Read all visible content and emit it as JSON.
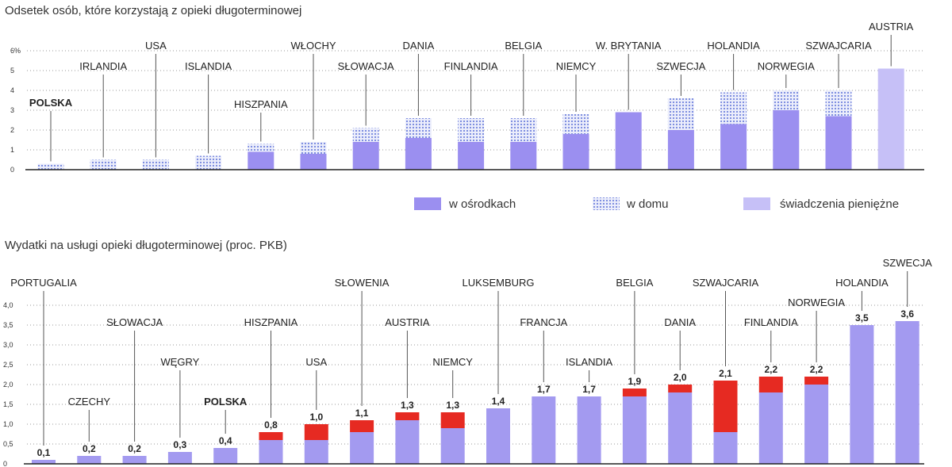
{
  "colors": {
    "institutional": "#9b8ff0",
    "home": "#7f8fe0",
    "home_bg": "#ebedfb",
    "cash": "#c6c0f7",
    "red": "#e62a22",
    "spending": "#a39af0"
  },
  "chart_data": [
    {
      "type": "bar",
      "title": "Odsetek osób, które korzystają z opieki długoterminowej",
      "ylabel": "%",
      "ylim": [
        0,
        6
      ],
      "yticks": [
        "0",
        "1",
        "2",
        "3",
        "4",
        "5",
        "6%"
      ],
      "categories": [
        "POLSKA",
        "IRLANDIA",
        "USA",
        "ISLANDIA",
        "HISZPANIA",
        "WŁOCHY",
        "SŁOWACJA",
        "DANIA",
        "FINLANDIA",
        "BELGIA",
        "NIEMCY",
        "W. BRYTANIA",
        "SZWECJA",
        "HOLANDIA",
        "NORWEGIA",
        "SZWAJCARIA",
        "AUSTRIA"
      ],
      "highlight": [
        "POLSKA"
      ],
      "series": [
        {
          "name": "w ośrodkach",
          "values": [
            0,
            0,
            0,
            0,
            0.9,
            0.8,
            1.4,
            1.6,
            1.4,
            1.4,
            1.8,
            2.9,
            2.0,
            2.3,
            3.0,
            2.7,
            0
          ]
        },
        {
          "name": "w domu",
          "values": [
            0.3,
            0.5,
            0.5,
            0.7,
            0.4,
            0.6,
            0.7,
            1.0,
            1.2,
            1.2,
            1.0,
            0,
            1.6,
            1.6,
            1.0,
            1.3,
            0
          ]
        },
        {
          "name": "świadczenia pieniężne",
          "values": [
            0,
            0,
            0,
            0,
            0,
            0,
            0,
            0,
            0,
            0,
            0,
            0,
            0,
            0,
            0,
            0,
            5.1
          ]
        }
      ],
      "legend": [
        {
          "key": "institutional",
          "label": "w ośrodkach"
        },
        {
          "key": "home",
          "label": "w domu"
        },
        {
          "key": "cash",
          "label": "świadczenia pieniężne"
        }
      ]
    },
    {
      "type": "bar",
      "title": "Wydatki na usługi opieki długoterminowej (proc. PKB)",
      "ylim": [
        0,
        4.0
      ],
      "yticks": [
        "0",
        "0,5",
        "1,0",
        "1,5",
        "2,0",
        "2,5",
        "3,0",
        "3,5",
        "4,0"
      ],
      "categories": [
        "PORTUGALIA",
        "CZECHY",
        "SŁOWACJA",
        "WĘGRY",
        "POLSKA",
        "HISZPANIA",
        "USA",
        "SŁOWENIA",
        "AUSTRIA",
        "NIEMCY",
        "LUKSEMBURG",
        "FRANCJA",
        "ISLANDIA",
        "BELGIA",
        "DANIA",
        "SZWAJCARIA",
        "FINLANDIA",
        "NORWEGIA",
        "HOLANDIA",
        "SZWECJA"
      ],
      "highlight": [
        "POLSKA"
      ],
      "totals": [
        0.1,
        0.2,
        0.2,
        0.3,
        0.4,
        0.8,
        1.0,
        1.1,
        1.3,
        1.3,
        1.4,
        1.7,
        1.7,
        1.9,
        2.0,
        2.1,
        2.2,
        2.2,
        3.5,
        3.6
      ],
      "value_labels": [
        "0,1",
        "0,2",
        "0,2",
        "0,3",
        "0,4",
        "0,8",
        "1,0",
        "1,1",
        "1,3",
        "1,3",
        "1,4",
        "1,7",
        "1,7",
        "1,9",
        "2,0",
        "2,1",
        "2,2",
        "2,2",
        "3,5",
        "3,6"
      ],
      "series": [
        {
          "name": "base",
          "values": [
            0.1,
            0.2,
            0.2,
            0.3,
            0.4,
            0.6,
            0.6,
            0.8,
            1.1,
            0.9,
            1.4,
            1.7,
            1.7,
            1.7,
            1.8,
            0.8,
            1.8,
            2.0,
            3.5,
            3.6
          ]
        },
        {
          "name": "red",
          "values": [
            0,
            0,
            0,
            0,
            0,
            0.2,
            0.4,
            0.3,
            0.2,
            0.4,
            0,
            0,
            0,
            0.2,
            0.2,
            1.3,
            0.4,
            0.2,
            0,
            0
          ]
        }
      ]
    }
  ]
}
